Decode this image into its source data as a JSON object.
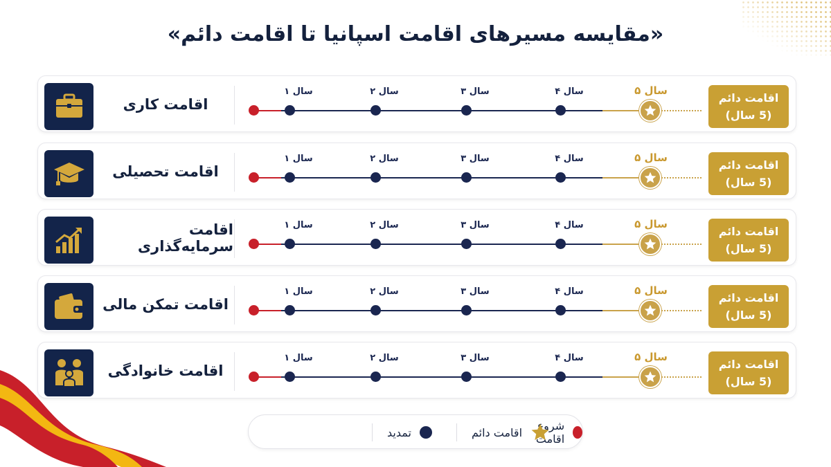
{
  "title": "«مقایسه مسیرهای اقامت اسپانیا تا اقامت دائم»",
  "colors": {
    "navy": "#13244a",
    "gold": "#c9a034",
    "red": "#c8202a"
  },
  "year_labels": [
    "سال ۱",
    "سال ۲",
    "سال ۳",
    "سال ۴",
    "سال ۵"
  ],
  "routes": [
    {
      "label": "اقامت کاری",
      "icon": "briefcase-icon",
      "permanent_line1": "اقامت دائم",
      "permanent_line2": "(5 سال)"
    },
    {
      "label": "اقامت تحصیلی",
      "icon": "graduation-cap-icon",
      "permanent_line1": "اقامت دائم",
      "permanent_line2": "(5 سال)"
    },
    {
      "label": "اقامت سرمایه‌گذاری",
      "icon": "growth-chart-icon",
      "permanent_line1": "اقامت دائم",
      "permanent_line2": "(5 سال)"
    },
    {
      "label": "اقامت تمکن مالی",
      "icon": "wallet-icon",
      "permanent_line1": "اقامت دائم",
      "permanent_line2": "(5 سال)"
    },
    {
      "label": "اقامت خانوادگی",
      "icon": "family-icon",
      "permanent_line1": "اقامت دائم",
      "permanent_line2": "(5 سال)"
    }
  ],
  "legend": {
    "permanent": "اقامت دائم",
    "renewal": "تمدید",
    "start": "شروع اقامت"
  }
}
